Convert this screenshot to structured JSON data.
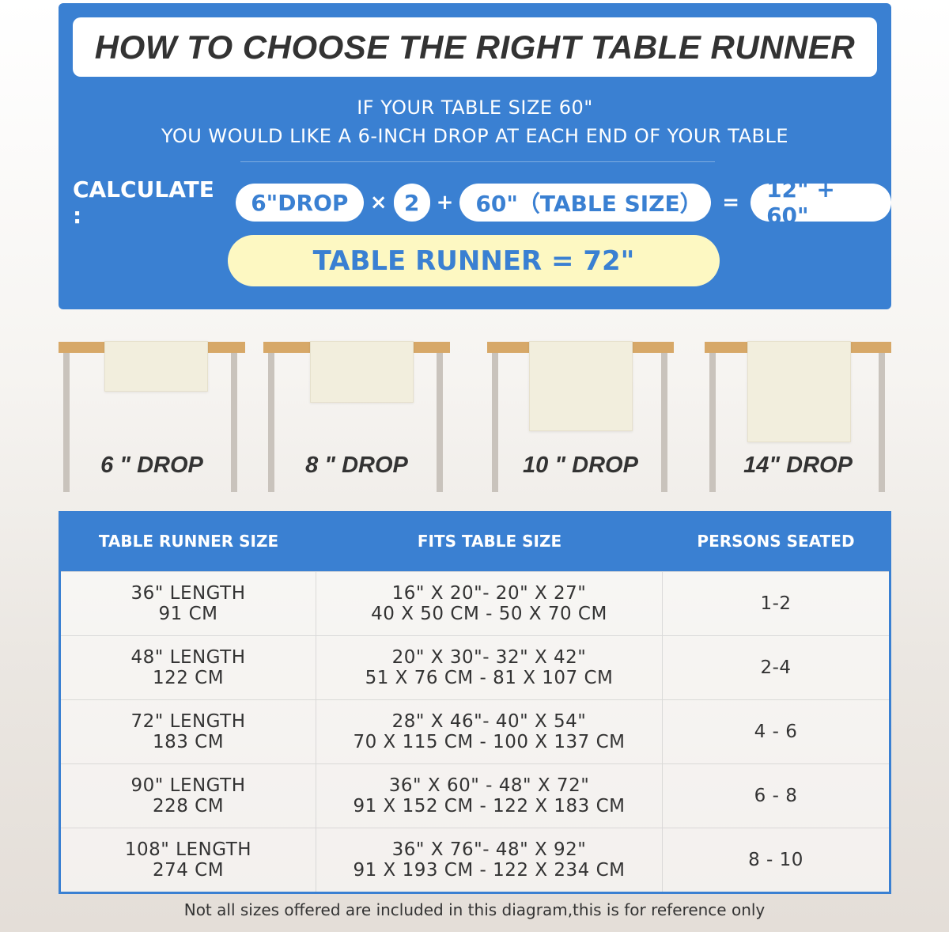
{
  "title": "HOW TO CHOOSE THE RIGHT TABLE RUNNER",
  "intro": {
    "line1": "IF YOUR TABLE SIZE 60\"",
    "line2": "YOU WOULD LIKE A 6-INCH DROP AT EACH END OF YOUR TABLE"
  },
  "calculate": {
    "label": "CALCULATE :",
    "drop": "6\"DROP",
    "times": "×",
    "multiplier": "2",
    "plus": "+",
    "table": "60\"（TABLE SIZE）",
    "equals": "=",
    "sum": "12\" + 60\"",
    "result": "TABLE RUNNER = 72\""
  },
  "drops": [
    {
      "label": "6 \" DROP",
      "inches": 6
    },
    {
      "label": "8 \" DROP",
      "inches": 8
    },
    {
      "label": "10 \" DROP",
      "inches": 10
    },
    {
      "label": "14\" DROP",
      "inches": 14
    }
  ],
  "table": {
    "headers": [
      "TABLE RUNNER SIZE",
      "FITS TABLE SIZE",
      "PERSONS SEATED"
    ],
    "rows": [
      {
        "size": [
          "36\" LENGTH",
          "91 CM"
        ],
        "fits": [
          "16\" X 20\"- 20\" X 27\"",
          "40 X 50 CM - 50 X 70 CM"
        ],
        "persons": "1-2"
      },
      {
        "size": [
          "48\" LENGTH",
          "122 CM"
        ],
        "fits": [
          "20\" X 30\"- 32\" X 42\"",
          "51 X 76 CM - 81 X 107 CM"
        ],
        "persons": "2-4"
      },
      {
        "size": [
          "72\" LENGTH",
          "183 CM"
        ],
        "fits": [
          "28\" X 46\"- 40\" X 54\"",
          "70 X 115 CM - 100 X 137 CM"
        ],
        "persons": "4 - 6"
      },
      {
        "size": [
          "90\" LENGTH",
          "228 CM"
        ],
        "fits": [
          "36\" X 60\" - 48\" X 72\"",
          "91 X 152 CM - 122 X 183 CM"
        ],
        "persons": "6 - 8"
      },
      {
        "size": [
          "108\" LENGTH",
          "274 CM"
        ],
        "fits": [
          "36\" X 76\"- 48\" X 92\"",
          "91 X 193 CM - 122 X 234 CM"
        ],
        "persons": "8 - 10"
      }
    ]
  },
  "footnote": "Not all sizes offered are included in this diagram,this is for reference only",
  "colors": {
    "accent": "#3a80d2",
    "highlight": "#fdf8c2",
    "tabletop": "#d7a868",
    "runner": "#f2eedd"
  }
}
